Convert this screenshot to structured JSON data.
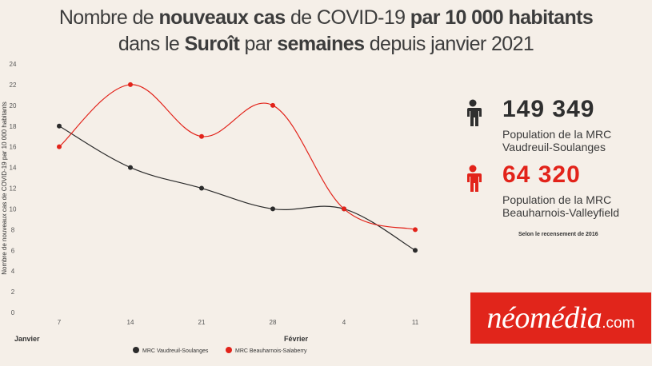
{
  "title": {
    "line1": [
      {
        "text": "Nombre de ",
        "bold": false
      },
      {
        "text": "nouveaux cas",
        "bold": true
      },
      {
        "text": " de COVID-19 ",
        "bold": false
      },
      {
        "text": "par 10 000 habitants",
        "bold": true
      }
    ],
    "line2": [
      {
        "text": "dans le ",
        "bold": false
      },
      {
        "text": "Suroît",
        "bold": true
      },
      {
        "text": " par ",
        "bold": false
      },
      {
        "text": "semaines",
        "bold": true
      },
      {
        "text": " depuis janvier 2021",
        "bold": false
      }
    ]
  },
  "chart_data": {
    "type": "line",
    "x": [
      "7",
      "14",
      "21",
      "28",
      "4",
      "11"
    ],
    "month_labels": [
      {
        "label": "Janvier",
        "at_index": 0,
        "offset": "before"
      },
      {
        "label": "Février",
        "at_index": 3,
        "offset": "after"
      }
    ],
    "ylabel": "Nombre de nouveaux cas de COVID-19 par 10 000 habitants",
    "ylim": [
      0,
      24
    ],
    "yticks": [
      0,
      2,
      4,
      6,
      8,
      10,
      12,
      14,
      16,
      18,
      20,
      22,
      24
    ],
    "smooth": true,
    "series": [
      {
        "name": "MRC Vaudreuil-Soulanges",
        "color": "#2b2b2b",
        "values": [
          18,
          14,
          12,
          10,
          10,
          6
        ]
      },
      {
        "name": "MRC Beauharnois-Salaberry",
        "color": "#e2231a",
        "values": [
          16,
          22,
          17,
          20,
          10,
          8
        ]
      }
    ],
    "legend_position": "bottom-center"
  },
  "stats": [
    {
      "number": "149 349",
      "line1": "Population de la MRC",
      "line2": "Vaudreuil-Soulanges",
      "color": "#2f2f2f",
      "icon": "person-icon"
    },
    {
      "number": "64 320",
      "line1": "Population de la MRC",
      "line2": "Beauharnois-Valleyfield",
      "color": "#e2231a",
      "icon": "person-icon"
    }
  ],
  "note": "Selon le recensement de 2016",
  "logo": {
    "main": "néomédia",
    "tld": ".com",
    "color": "#e1251b"
  }
}
